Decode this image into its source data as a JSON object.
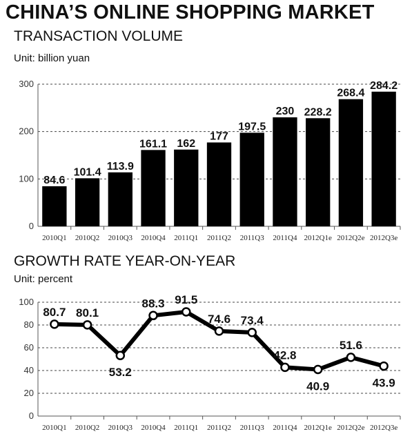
{
  "header": {
    "title": "CHINA’S ONLINE SHOPPING MARKET"
  },
  "chart_data": [
    {
      "type": "bar",
      "title": "TRANSACTION VOLUME",
      "unit": "Unit: billion yuan",
      "categories": [
        "2010Q1",
        "2010Q2",
        "2010Q3",
        "2010Q4",
        "2011Q1",
        "2011Q2",
        "2011Q3",
        "2011Q4",
        "2012Q1e",
        "2012Q2e",
        "2012Q3e"
      ],
      "values": [
        84.6,
        101.4,
        113.9,
        161.1,
        162,
        177,
        197.5,
        230,
        228.2,
        268.4,
        284.2
      ],
      "value_labels": [
        "84.6",
        "101.4",
        "113.9",
        "161.1",
        "162",
        "177",
        "197.5",
        "230",
        "228.2",
        "268.4",
        "284.2"
      ],
      "ylim": [
        0,
        300
      ],
      "yticks": [
        0,
        100,
        200,
        300
      ],
      "grid": true,
      "bar_color": "#000000"
    },
    {
      "type": "line",
      "title": "GROWTH RATE YEAR-ON-YEAR",
      "unit": "Unit: percent",
      "categories": [
        "2010Q1",
        "2010Q2",
        "2010Q3",
        "2010Q4",
        "2011Q1",
        "2011Q2",
        "2011Q3",
        "2011Q4",
        "2012Q1e",
        "2012Q2e",
        "2012Q3e"
      ],
      "values": [
        80.7,
        80.1,
        53.2,
        88.3,
        91.5,
        74.6,
        73.4,
        42.8,
        40.9,
        51.6,
        43.9
      ],
      "value_labels": [
        "80.7",
        "80.1",
        "53.2",
        "88.3",
        "91.5",
        "74.6",
        "73.4",
        "42.8",
        "40.9",
        "51.6",
        "43.9"
      ],
      "ylim": [
        0,
        100
      ],
      "yticks": [
        0,
        20,
        40,
        60,
        80,
        100
      ],
      "grid": true,
      "line_color": "#000000"
    }
  ]
}
